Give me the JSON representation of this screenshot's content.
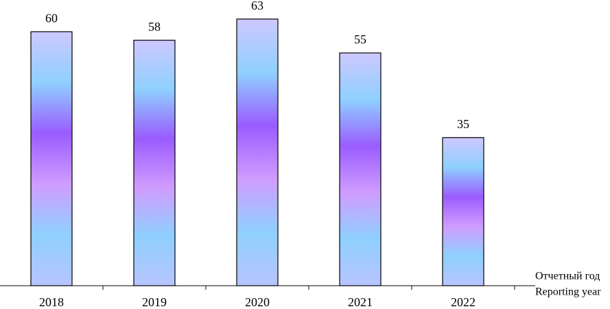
{
  "chart_data": {
    "type": "bar",
    "categories": [
      "2018",
      "2019",
      "2020",
      "2021",
      "2022"
    ],
    "values": [
      60,
      58,
      63,
      55,
      35
    ],
    "gradient": [
      "#cdc8ff",
      "#8fd0ff",
      "#9a5cff",
      "#d09cff",
      "#8fd0ff",
      "#b8c4ff"
    ],
    "ylim": [
      0,
      67.5
    ],
    "x_label_lines": [
      "Отчетный год",
      "Reporting year"
    ]
  }
}
